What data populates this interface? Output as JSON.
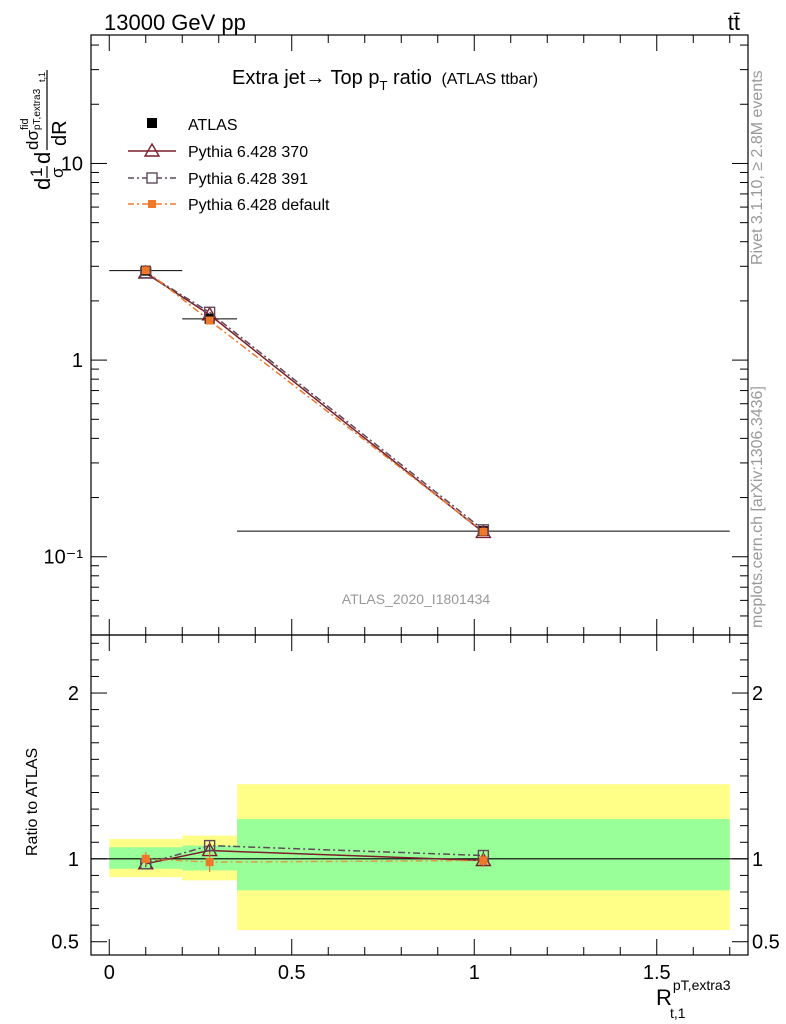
{
  "header": {
    "energy_label": "13000 GeV pp",
    "process_label": "tt̄"
  },
  "side_labels": {
    "rivet": "Rivet 3.1.10, ≥ 2.8M events",
    "mcplots": "mcplots.cern.ch [arXiv:1306.3436]"
  },
  "watermark": "ATLAS_2020_I1801434",
  "colors": {
    "atlas": "#000000",
    "py370": "#7a1f2b",
    "py391": "#5e4a5a",
    "pydefault": "#f0782a",
    "band_inner": "#99ff99",
    "band_outer": "#ffff88"
  },
  "chart_data": [
    {
      "type": "line",
      "title": "Extra jet→ Top p_T ratio (ATLAS ttbar)",
      "title_main": "Extra jet",
      "title_arrow": "→",
      "title_rest": " Top p",
      "title_sub": "T",
      "title_tail": " ratio",
      "title_small": "(ATLAS ttbar)",
      "ylabel": "1/σ dσ^fid/dR^pT,extra3_t,1",
      "y_scale": "log",
      "xlim": [
        -0.05,
        1.75
      ],
      "ylim": [
        0.04,
        45
      ],
      "y_ticks": [
        {
          "value": 0.1,
          "label": "10⁻¹"
        },
        {
          "value": 1,
          "label": "1"
        },
        {
          "value": 10,
          "label": "10"
        }
      ],
      "legend_position": "top-left",
      "series": [
        {
          "name": "ATLAS",
          "marker": "filled-square",
          "x": [
            0.1,
            0.275,
            1.025
          ],
          "y": [
            2.85,
            1.62,
            0.135
          ],
          "xerr": [
            0.1,
            0.075,
            0.675
          ]
        },
        {
          "name": "Pythia 6.428 370",
          "marker": "open-triangle",
          "line": "solid",
          "x": [
            0.1,
            0.275,
            1.025
          ],
          "y": [
            2.77,
            1.7,
            0.133
          ]
        },
        {
          "name": "Pythia 6.428 391",
          "marker": "open-square",
          "line": "dashdot",
          "x": [
            0.1,
            0.275,
            1.025
          ],
          "y": [
            2.78,
            1.75,
            0.137
          ]
        },
        {
          "name": "Pythia 6.428 default",
          "marker": "filled-small-square",
          "line": "dashdot",
          "x": [
            0.1,
            0.275,
            1.025
          ],
          "y": [
            2.86,
            1.59,
            0.134
          ]
        }
      ]
    },
    {
      "type": "line",
      "xlabel": "R^pT,extra3_t,1",
      "xlabel_main": "R",
      "xlabel_sup": "pT,extra3",
      "xlabel_sub": "t,1",
      "ylabel": "Ratio to ATLAS",
      "xlim": [
        -0.05,
        1.75
      ],
      "ylim": [
        0.42,
        2.35
      ],
      "x_ticks": [
        {
          "value": 0,
          "label": "0"
        },
        {
          "value": 0.5,
          "label": "0.5"
        },
        {
          "value": 1,
          "label": "1"
        },
        {
          "value": 1.5,
          "label": "1.5"
        }
      ],
      "y_ticks": [
        {
          "value": 0.5,
          "label": "0.5"
        },
        {
          "value": 1,
          "label": "1"
        },
        {
          "value": 2,
          "label": "2"
        }
      ],
      "bands": [
        {
          "x0": 0.0,
          "x1": 0.2,
          "inner": [
            0.94,
            1.07
          ],
          "outer": [
            0.89,
            1.12
          ]
        },
        {
          "x0": 0.2,
          "x1": 0.35,
          "inner": [
            0.93,
            1.08
          ],
          "outer": [
            0.87,
            1.14
          ]
        },
        {
          "x0": 0.35,
          "x1": 1.7,
          "inner": [
            0.81,
            1.24
          ],
          "outer": [
            0.57,
            1.45
          ]
        }
      ],
      "series": [
        {
          "name": "Pythia 6.428 370",
          "x": [
            0.1,
            0.275,
            1.025
          ],
          "y": [
            0.97,
            1.05,
            0.99
          ],
          "err": [
            0.02,
            0.03,
            0.03
          ]
        },
        {
          "name": "Pythia 6.428 391",
          "x": [
            0.1,
            0.275,
            1.025
          ],
          "y": [
            0.97,
            1.08,
            1.02
          ],
          "err": [
            0.02,
            0.03,
            0.03
          ]
        },
        {
          "name": "Pythia 6.428 default",
          "x": [
            0.1,
            0.275,
            1.025
          ],
          "y": [
            1.0,
            0.98,
            0.99
          ],
          "err": [
            0.04,
            0.06,
            0.04
          ]
        }
      ]
    }
  ]
}
